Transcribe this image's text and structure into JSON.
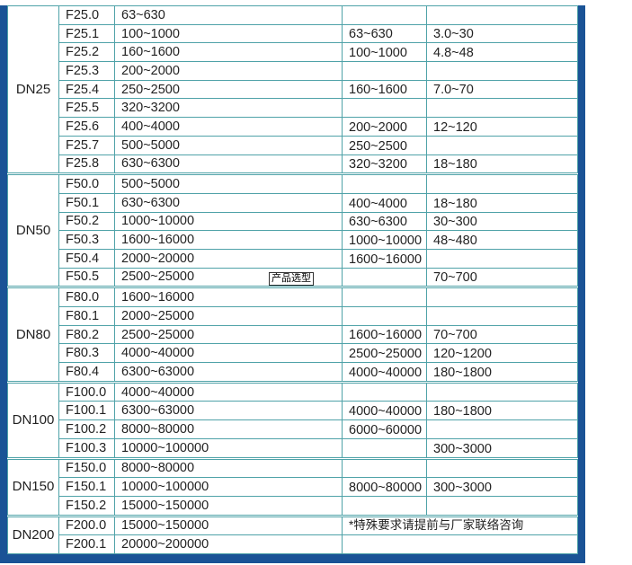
{
  "groups": [
    {
      "dn": "DN25",
      "rows": [
        {
          "model": "F25.0",
          "range": "63~630",
          "c4": "",
          "c5": ""
        },
        {
          "model": "F25.1",
          "range": "100~1000",
          "c4": "63~630",
          "c5": "3.0~30"
        },
        {
          "model": "F25.2",
          "range": "160~1600",
          "c4": "100~1000",
          "c5": "4.8~48"
        },
        {
          "model": "F25.3",
          "range": "200~2000",
          "c4": "",
          "c5": ""
        },
        {
          "model": "F25.4",
          "range": "250~2500",
          "c4": "160~1600",
          "c5": "7.0~70"
        },
        {
          "model": "F25.5",
          "range": "320~3200",
          "c4": "",
          "c5": ""
        },
        {
          "model": "F25.6",
          "range": "400~4000",
          "c4": "200~2000",
          "c5": "12~120"
        },
        {
          "model": "F25.7",
          "range": "500~5000",
          "c4": "250~2500",
          "c5": ""
        },
        {
          "model": "F25.8",
          "range": "630~6300",
          "c4": "320~3200",
          "c5": "18~180"
        }
      ]
    },
    {
      "dn": "DN50",
      "rows": [
        {
          "model": "F50.0",
          "range": "500~5000",
          "c4": "",
          "c5": ""
        },
        {
          "model": "F50.1",
          "range": "630~6300",
          "c4": "400~4000",
          "c5": "18~180"
        },
        {
          "model": "F50.2",
          "range": "1000~10000",
          "c4": "630~6300",
          "c5": "30~300"
        },
        {
          "model": "F50.3",
          "range": "1600~16000",
          "c4": "1000~10000",
          "c5": "48~480"
        },
        {
          "model": "F50.4",
          "range": "2000~20000",
          "c4": "1600~16000",
          "c5": ""
        },
        {
          "model": "F50.5",
          "range": "2500~25000",
          "c4": "",
          "c5": "70~700"
        }
      ]
    },
    {
      "dn": "DN80",
      "rows": [
        {
          "model": "F80.0",
          "range": "1600~16000",
          "c4": "",
          "c5": ""
        },
        {
          "model": "F80.1",
          "range": "2000~25000",
          "c4": "",
          "c5": ""
        },
        {
          "model": "F80.2",
          "range": "2500~25000",
          "c4": "1600~16000",
          "c5": "70~700"
        },
        {
          "model": "F80.3",
          "range": "4000~40000",
          "c4": "2500~25000",
          "c5": "120~1200"
        },
        {
          "model": "F80.4",
          "range": "6300~63000",
          "c4": "4000~40000",
          "c5": "180~1800"
        }
      ]
    },
    {
      "dn": "DN100",
      "rows": [
        {
          "model": "F100.0",
          "range": "4000~40000",
          "c4": "",
          "c5": ""
        },
        {
          "model": "F100.1",
          "range": "6300~63000",
          "c4": "4000~40000",
          "c5": "180~1800"
        },
        {
          "model": "F100.2",
          "range": "8000~80000",
          "c4": "6000~60000",
          "c5": ""
        },
        {
          "model": "F100.3",
          "range": "10000~100000",
          "c4": "",
          "c5": "300~3000"
        }
      ]
    },
    {
      "dn": "DN150",
      "rows": [
        {
          "model": "F150.0",
          "range": "8000~80000",
          "c4": "",
          "c5": ""
        },
        {
          "model": "F150.1",
          "range": "10000~100000",
          "c4": "8000~80000",
          "c5": "300~3000"
        },
        {
          "model": "F150.2",
          "range": "15000~150000",
          "c4": "",
          "c5": ""
        }
      ]
    },
    {
      "dn": "DN200",
      "rows": [
        {
          "model": "F200.0",
          "range": "15000~150000",
          "note": "*特殊要求请提前与厂家联络咨询"
        },
        {
          "model": "F200.1",
          "range": "20000~200000",
          "note": ""
        }
      ]
    }
  ],
  "tooltip": "产品选型",
  "colors": {
    "frame": "#1a5396",
    "grid": "#4fa2a8"
  }
}
